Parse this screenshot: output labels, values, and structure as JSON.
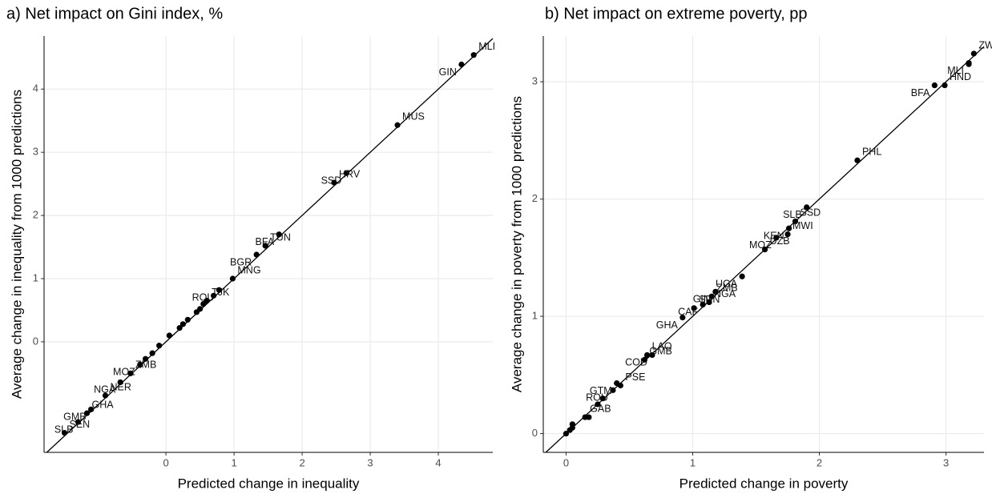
{
  "chart_data": [
    {
      "type": "scatter",
      "title": "a) Net impact on Gini index, %",
      "x_label": "Predicted change in inequality",
      "y_label": "Average change in inequality from 1000 predictions",
      "color": "#000000",
      "grid": true,
      "xlim": [
        -1.79,
        4.8
      ],
      "ylim": [
        -1.75,
        4.84
      ],
      "xticks": [
        0,
        1,
        2,
        3,
        4
      ],
      "yticks": [
        0,
        1,
        2,
        3,
        4
      ],
      "labels": [
        "MLI",
        "GIN",
        "MUS",
        "SSD",
        "HRV",
        "BFA",
        "TUN",
        "BGR",
        "MNG",
        "ROU",
        "TJK",
        "MOZ",
        "ZMB",
        "NGA",
        "NER",
        "GMB",
        "GHA",
        "SLB",
        "SEN",
        null,
        null,
        null,
        null,
        null,
        null,
        null,
        null,
        null,
        null,
        null
      ],
      "x": [
        4.52,
        4.34,
        3.4,
        2.65,
        2.47,
        1.66,
        1.46,
        1.33,
        0.98,
        0.78,
        0.6,
        -0.38,
        -0.52,
        -0.67,
        -0.89,
        -1.1,
        -1.16,
        -1.29,
        -1.49,
        -0.3,
        -0.2,
        -0.1,
        0.05,
        0.2,
        0.25,
        0.32,
        0.45,
        0.5,
        0.7,
        0.55
      ],
      "values": [
        4.54,
        4.39,
        3.43,
        2.67,
        2.52,
        1.7,
        1.52,
        1.38,
        1.0,
        0.82,
        0.65,
        -0.36,
        -0.5,
        -0.64,
        -0.85,
        -1.07,
        -1.13,
        -1.27,
        -1.44,
        -0.27,
        -0.18,
        -0.06,
        0.1,
        0.22,
        0.28,
        0.35,
        0.47,
        0.52,
        0.73,
        0.6
      ]
    },
    {
      "type": "scatter",
      "title": "b) Net impact on extreme poverty, pp",
      "x_label": "Predicted change in poverty",
      "y_label": "Average change in poverty from 1000 predictions",
      "color": "#000000",
      "grid": true,
      "xlim": [
        -0.18,
        3.3
      ],
      "ylim": [
        -0.16,
        3.39
      ],
      "xticks": [
        0,
        1,
        2,
        3
      ],
      "yticks": [
        0,
        1,
        2,
        3
      ],
      "labels": [
        "ZWE",
        "MLI",
        "HND",
        "BFA",
        "PHL",
        "SLB",
        "SSD",
        "KEN",
        "MWI",
        "MOZ",
        "UZB",
        "UGA",
        "ZMB",
        "GIN",
        "NGA",
        "CAF",
        "SDN",
        "GHA",
        "LAO",
        "COD",
        "GMB",
        "GTM",
        "PSE",
        "ROU",
        "GAB",
        null,
        null,
        null,
        null,
        null,
        null,
        null,
        null
      ],
      "x": [
        3.22,
        3.18,
        2.99,
        2.91,
        2.3,
        1.9,
        1.81,
        1.76,
        1.75,
        1.66,
        1.57,
        1.39,
        1.15,
        1.18,
        1.13,
        1.08,
        1.01,
        0.92,
        0.64,
        0.68,
        0.62,
        0.4,
        0.43,
        0.37,
        0.15,
        0.0,
        0.03,
        0.05,
        0.05,
        0.18,
        0.25,
        0.29,
        3.18
      ],
      "values": [
        3.24,
        3.16,
        2.97,
        2.97,
        2.33,
        1.93,
        1.81,
        1.75,
        1.7,
        1.67,
        1.57,
        1.34,
        1.17,
        1.21,
        1.12,
        1.1,
        1.07,
        0.99,
        0.67,
        0.67,
        0.63,
        0.43,
        0.41,
        0.37,
        0.14,
        0.0,
        0.03,
        0.08,
        0.05,
        0.14,
        0.25,
        0.3,
        3.15
      ]
    }
  ]
}
